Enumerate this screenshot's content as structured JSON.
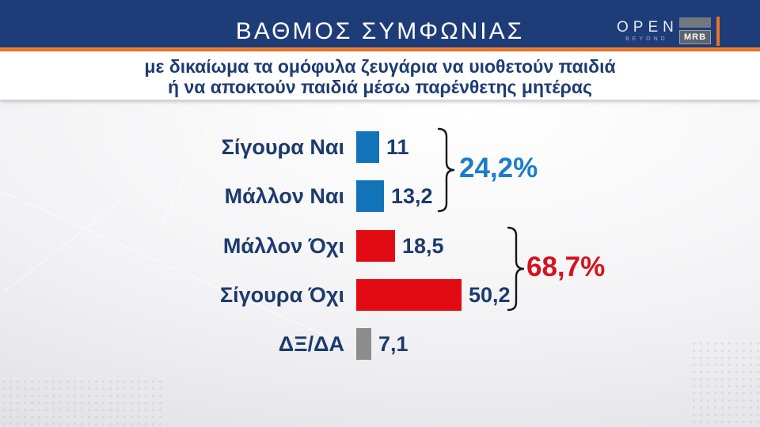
{
  "header": {
    "title": "ΒΑΘΜΟΣ ΣΥΜΦΩΝΙΑΣ",
    "channel_logo": {
      "name": "OPEN",
      "tagline": "BEYOND"
    },
    "agency_logo": {
      "label": "MRB"
    }
  },
  "subtitle": {
    "line1": "με δικαίωμα τα ομόφυλα ζευγάρια να υιοθετούν παιδιά",
    "line2": "ή να αποκτούν παιδιά μέσω παρένθετης μητέρας"
  },
  "chart_data": {
    "type": "bar",
    "orientation": "horizontal",
    "title": "ΒΑΘΜΟΣ ΣΥΜΦΩΝΙΑΣ",
    "subtitle": "με δικαίωμα τα ομόφυλα ζευγάρια να υιοθετούν παιδιά ή να αποκτούν παιδιά μέσω παρένθετης μητέρας",
    "categories": [
      "Σίγουρα Ναι",
      "Μάλλον Ναι",
      "Μάλλον Όχι",
      "Σίγουρα Όχι",
      "ΔΞ/ΔΑ"
    ],
    "values": [
      11,
      13.2,
      18.5,
      50.2,
      7.1
    ],
    "value_labels": [
      "11",
      "13,2",
      "18,5",
      "50,2",
      "7,1"
    ],
    "bar_colors": [
      "#1173b8",
      "#1173b8",
      "#e20b13",
      "#e20b13",
      "#8c8c8c"
    ],
    "groups": [
      {
        "label": "24,2%",
        "sum_of": [
          "Σίγουρα Ναι",
          "Μάλλον Ναι"
        ],
        "color": "#1b7dc9"
      },
      {
        "label": "68,7%",
        "sum_of": [
          "Μάλλον Όχι",
          "Σίγουρα Όχι"
        ],
        "color": "#d8121c"
      }
    ],
    "xlim": [
      0,
      55
    ],
    "grid": false,
    "legend": "none"
  },
  "colors": {
    "header_bg": "#1e3c78",
    "accent_orange": "#e87524",
    "text_navy": "#1c3a6d",
    "bar_blue": "#1173b8",
    "bar_red": "#e20b13",
    "bar_gray": "#8c8c8c",
    "brace": "#14161c"
  }
}
